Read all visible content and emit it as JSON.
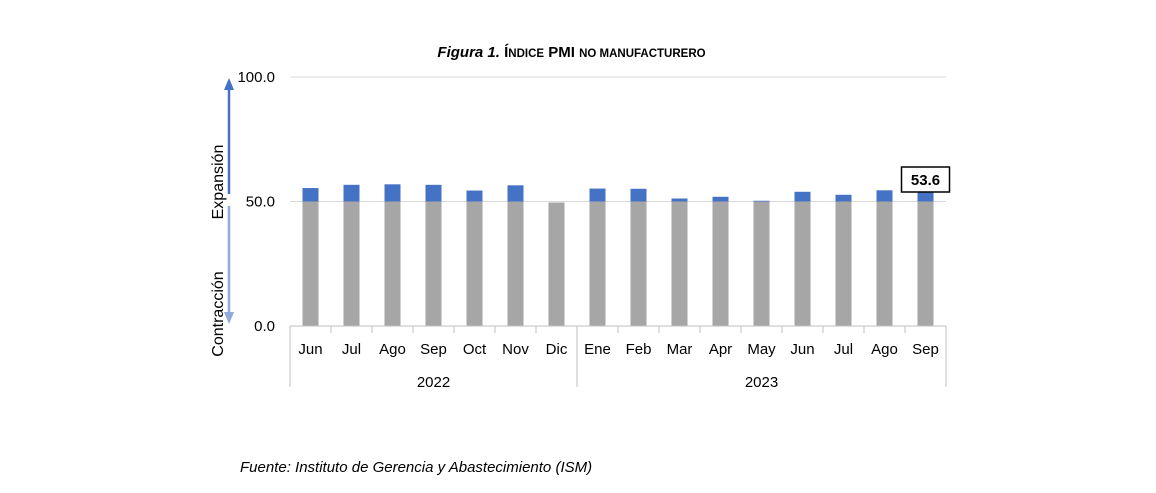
{
  "title": {
    "figure": "Figura 1.",
    "parts": [
      "Í",
      "ndice",
      " PMI ",
      "no manufacturero"
    ]
  },
  "source": "Fuente: Instituto de Gerencia y Abastecimiento (ISM)",
  "chart_data": {
    "type": "bar",
    "stacked": true,
    "categories": [
      "Jun",
      "Jul",
      "Ago",
      "Sep",
      "Oct",
      "Nov",
      "Dic",
      "Ene",
      "Feb",
      "Mar",
      "Apr",
      "May",
      "Jun",
      "Jul",
      "Ago",
      "Sep"
    ],
    "groups": [
      {
        "label": "2022",
        "count": 7
      },
      {
        "label": "2023",
        "count": 9
      }
    ],
    "values": [
      55.4,
      56.7,
      56.9,
      56.7,
      54.4,
      56.5,
      49.6,
      55.2,
      55.1,
      51.2,
      51.9,
      50.3,
      53.9,
      52.7,
      54.5,
      53.6
    ],
    "threshold": 50,
    "series_colors": {
      "base": "#a6a6a6",
      "excess": "#4472c4"
    },
    "ylim": [
      0,
      100
    ],
    "yticks": [
      "0.0",
      "50.0",
      "100.0"
    ],
    "ytick_values": [
      0,
      50,
      100
    ],
    "side_labels": {
      "upper": "Expansión",
      "lower": "Contracción"
    },
    "arrow_colors": {
      "upper": "#4472c4",
      "lower": "#8faadc"
    },
    "callout": {
      "index": 15,
      "label": "53.6"
    },
    "grid": true
  }
}
